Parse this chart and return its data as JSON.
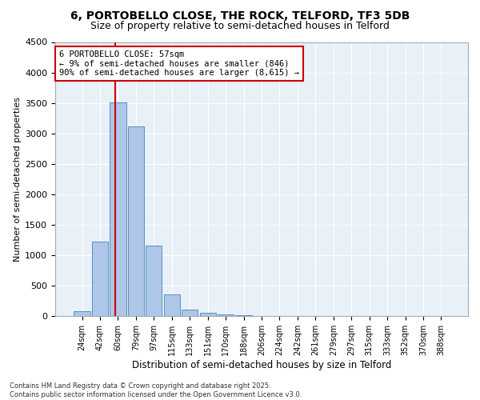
{
  "title": "6, PORTOBELLO CLOSE, THE ROCK, TELFORD, TF3 5DB",
  "subtitle": "Size of property relative to semi-detached houses in Telford",
  "xlabel": "Distribution of semi-detached houses by size in Telford",
  "ylabel": "Number of semi-detached properties",
  "bar_labels": [
    "24sqm",
    "42sqm",
    "60sqm",
    "79sqm",
    "97sqm",
    "115sqm",
    "133sqm",
    "151sqm",
    "170sqm",
    "188sqm",
    "206sqm",
    "224sqm",
    "242sqm",
    "261sqm",
    "279sqm",
    "297sqm",
    "315sqm",
    "333sqm",
    "352sqm",
    "370sqm",
    "388sqm"
  ],
  "bar_values": [
    80,
    1220,
    3510,
    3110,
    1160,
    350,
    100,
    50,
    30,
    10,
    5,
    0,
    0,
    0,
    0,
    0,
    0,
    0,
    0,
    0,
    0
  ],
  "bar_color": "#aec6e8",
  "bar_edge_color": "#5a8fc0",
  "annotation_text": "6 PORTOBELLO CLOSE: 57sqm\n← 9% of semi-detached houses are smaller (846)\n90% of semi-detached houses are larger (8,615) →",
  "annotation_box_color": "#ffffff",
  "annotation_box_edge": "#cc0000",
  "vline_color": "#cc0000",
  "ylim": [
    0,
    4500
  ],
  "yticks": [
    0,
    500,
    1000,
    1500,
    2000,
    2500,
    3000,
    3500,
    4000,
    4500
  ],
  "bg_color": "#e8f0f8",
  "footer_text": "Contains HM Land Registry data © Crown copyright and database right 2025.\nContains public sector information licensed under the Open Government Licence v3.0.",
  "title_fontsize": 10,
  "subtitle_fontsize": 9,
  "annotation_fontsize": 7.5,
  "ylabel_fontsize": 8,
  "xlabel_fontsize": 8.5,
  "ytick_fontsize": 8,
  "xtick_fontsize": 7,
  "footer_fontsize": 6
}
